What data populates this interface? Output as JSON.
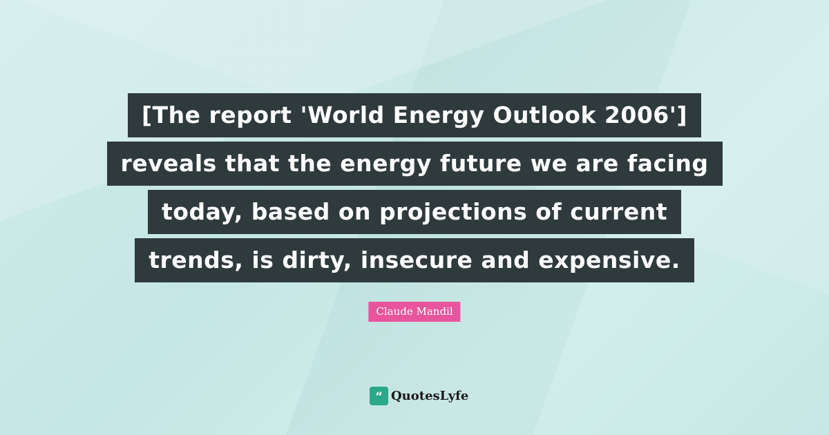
{
  "quote": {
    "lines": [
      "[The report 'World Energy Outlook 2006']",
      "reveals that the energy future we are facing",
      "today, based on projections of current",
      "trends, is dirty, insecure and expensive."
    ]
  },
  "author": "Claude Mandil",
  "brand": {
    "name": "QuotesLyfe",
    "icon": "quote-logo-icon"
  },
  "colors": {
    "background": "#c9e9e7",
    "quote_box": "#2f3a3d",
    "author_box": "#e9559d",
    "brand": "#2aa889"
  }
}
